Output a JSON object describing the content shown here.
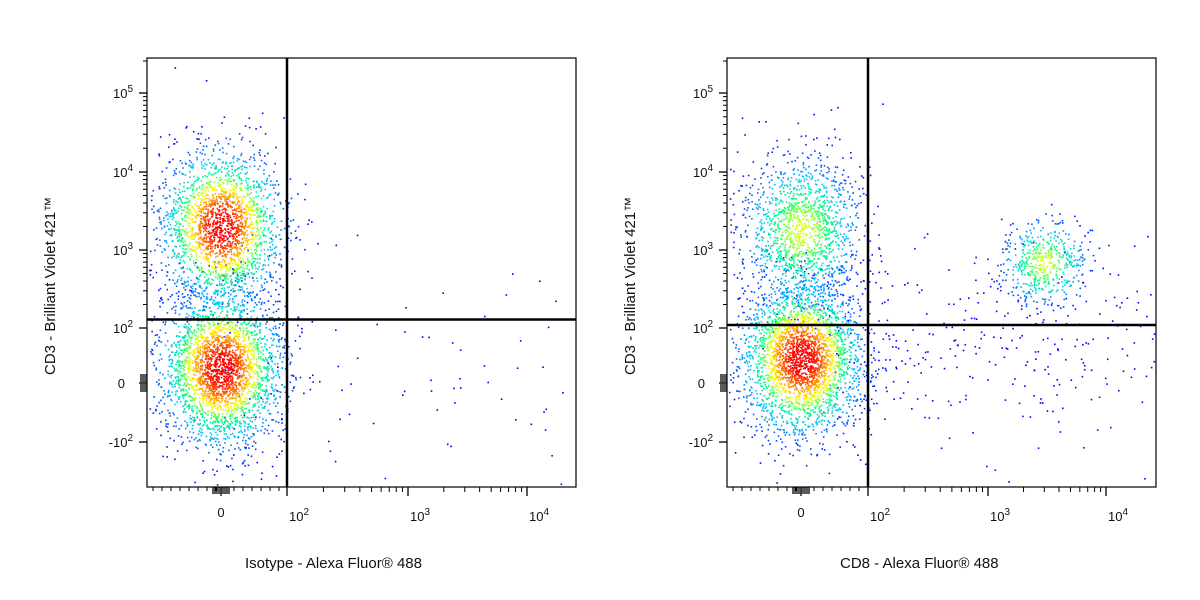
{
  "chart_data": [
    {
      "type": "scatter",
      "subtype": "flow-cytometry-density-dot-plot",
      "xlabel": "Isotype - Alexa Fluor® 488",
      "ylabel": "CD3 - Brilliant Violet 421™",
      "x_scale": "biexponential",
      "y_scale": "biexponential",
      "x_ticks": [
        "0",
        "10^2",
        "10^3",
        "10^4"
      ],
      "y_ticks": [
        "10^5",
        "10^4",
        "10^3",
        "10^2",
        "0",
        "-10^2"
      ],
      "quadrant_gate": {
        "x": 100,
        "y": 130
      },
      "populations": [
        {
          "x": 0,
          "y": 2000,
          "relative_size": 0.42
        },
        {
          "x": 0,
          "y": 10,
          "relative_size": 0.56
        },
        {
          "x": 300,
          "y": 10,
          "relative_size": 0.02
        }
      ],
      "density_colormap": [
        "#0000ff",
        "#00c0ff",
        "#00ff80",
        "#ffff00",
        "#ff8000",
        "#ff0000"
      ]
    },
    {
      "type": "scatter",
      "subtype": "flow-cytometry-density-dot-plot",
      "xlabel": "CD8 - Alexa Fluor® 488",
      "ylabel": "CD3 - Brilliant Violet 421™",
      "x_scale": "biexponential",
      "y_scale": "biexponential",
      "x_ticks": [
        "0",
        "10^2",
        "10^3",
        "10^4"
      ],
      "y_ticks": [
        "10^5",
        "10^4",
        "10^3",
        "10^2",
        "0",
        "-10^2"
      ],
      "quadrant_gate": {
        "x": 100,
        "y": 110
      },
      "populations": [
        {
          "x": 0,
          "y": 1800,
          "relative_size": 0.28
        },
        {
          "x": 0,
          "y": 20,
          "relative_size": 0.55
        },
        {
          "x": 3000,
          "y": 700,
          "relative_size": 0.1
        },
        {
          "x": 500,
          "y": 50,
          "relative_size": 0.07
        }
      ],
      "density_colormap": [
        "#0000ff",
        "#00c0ff",
        "#00ff80",
        "#ffff00",
        "#ff8000",
        "#ff0000"
      ]
    }
  ]
}
